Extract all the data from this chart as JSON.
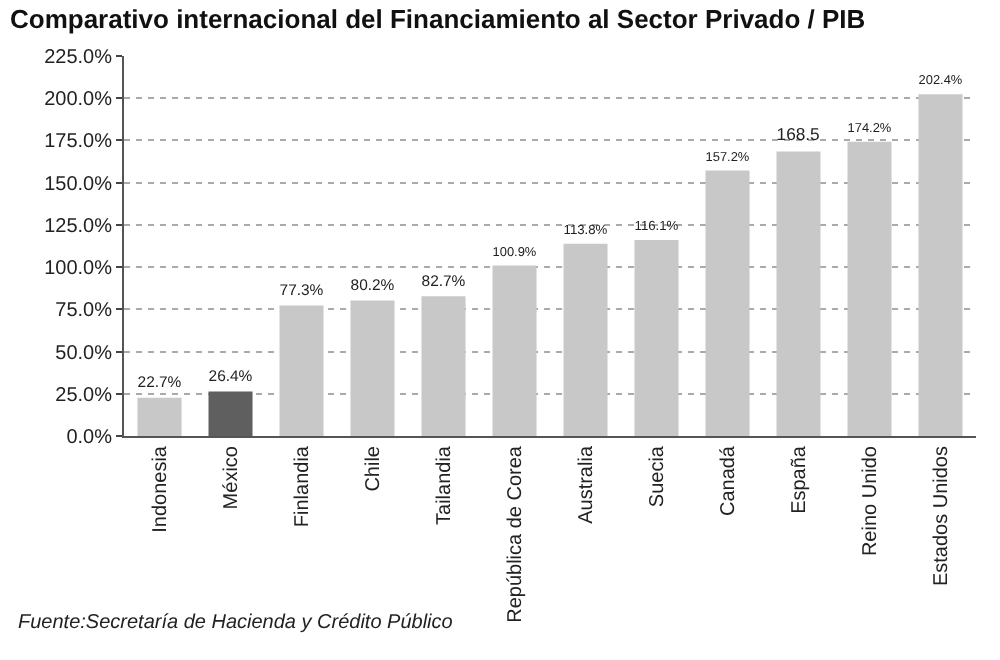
{
  "chart_data": {
    "type": "bar",
    "title": "Comparativo internacional del Financiamiento al Sector Privado / PIB",
    "categories": [
      "Indonesia",
      "México",
      "Finlandia",
      "Chile",
      "Tailandia",
      "República de Corea",
      "Australia",
      "Suecia",
      "Canadá",
      "España",
      "Reino Unido",
      "Estados Unidos"
    ],
    "values": [
      22.7,
      26.4,
      77.3,
      80.2,
      82.7,
      100.9,
      113.8,
      116.1,
      157.2,
      168.5,
      174.2,
      202.4
    ],
    "colors": [
      "#c8c8c8",
      "#5f5f5f",
      "#c8c8c8",
      "#c8c8c8",
      "#c8c8c8",
      "#c8c8c8",
      "#c8c8c8",
      "#c8c8c8",
      "#c8c8c8",
      "#c8c8c8",
      "#c8c8c8",
      "#c8c8c8"
    ],
    "value_labels": [
      "22.7%",
      "26.4%",
      "77.3%",
      "80.2%",
      "82.7%",
      "100.9%",
      "113.8%",
      "116.1%",
      "157.2%",
      "168.5",
      "174.2%",
      "202.4%"
    ],
    "ylim": [
      0,
      225
    ],
    "yticks": [
      {
        "value": 0,
        "label": "0.0%"
      },
      {
        "value": 25,
        "label": "25.0%"
      },
      {
        "value": 50,
        "label": "50.0%"
      },
      {
        "value": 75,
        "label": "75.0%"
      },
      {
        "value": 100,
        "label": "100.0%"
      },
      {
        "value": 125,
        "label": "125.0%"
      },
      {
        "value": 150,
        "label": "150.0%"
      },
      {
        "value": 175,
        "label": "175.0%"
      },
      {
        "value": 200,
        "label": "200.0%"
      },
      {
        "value": 225,
        "label": "225.0%"
      }
    ],
    "grid": "y",
    "annotations": [
      "Fuente:Secretaría de Hacienda y Crédito Público"
    ]
  }
}
